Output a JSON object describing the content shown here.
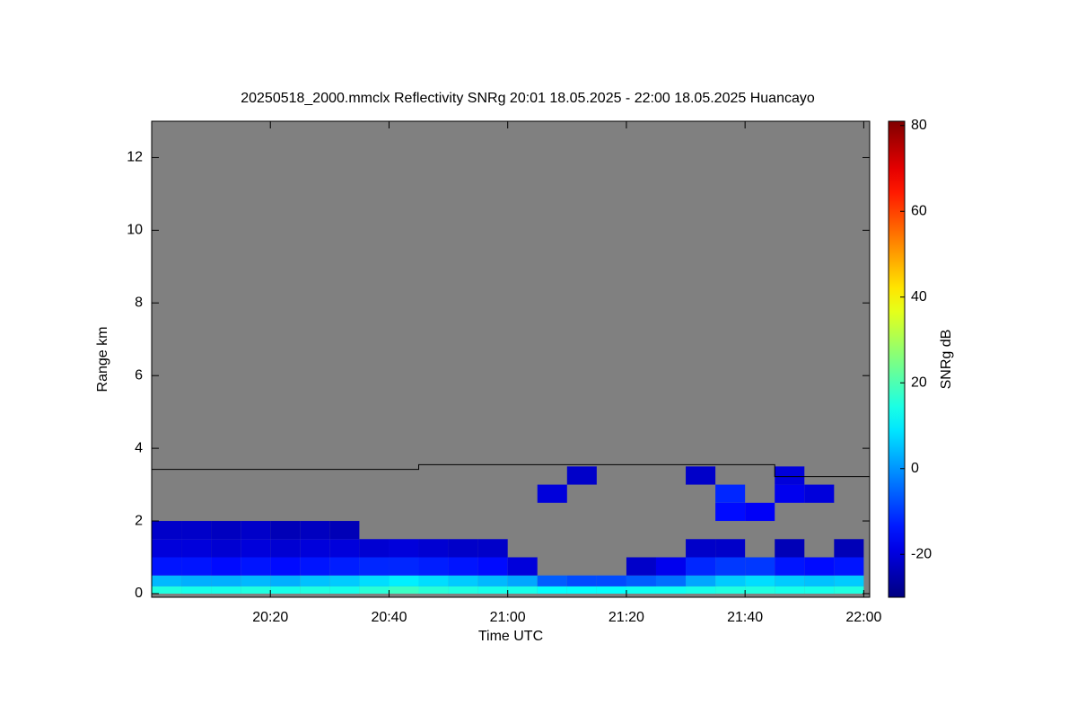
{
  "chart_data": {
    "type": "heatmap",
    "title": "20250518_2000.mmclx Reflectivity SNRg   20:01 18.05.2025 - 22:00 18.05.2025 Huancayo",
    "x_label": "Time UTC",
    "y_label": "Range km",
    "colorbar_label": "SNRg dB",
    "background": "#808080",
    "colormap": "jet",
    "xlim": [
      1200,
      1321
    ],
    "xticks": [
      {
        "value": 1220,
        "label": "20:20"
      },
      {
        "value": 1240,
        "label": "20:40"
      },
      {
        "value": 1260,
        "label": "21:00"
      },
      {
        "value": 1280,
        "label": "21:20"
      },
      {
        "value": 1300,
        "label": "21:40"
      },
      {
        "value": 1320,
        "label": "22:00"
      }
    ],
    "ylim": [
      -0.1,
      13
    ],
    "yticks": [
      0,
      2,
      4,
      6,
      8,
      10,
      12
    ],
    "clim": [
      -30,
      81
    ],
    "cticks": [
      -20,
      0,
      20,
      40,
      60,
      80
    ],
    "x_bins": [
      1200,
      1205,
      1210,
      1215,
      1220,
      1225,
      1230,
      1235,
      1240,
      1245,
      1250,
      1255,
      1260,
      1265,
      1270,
      1275,
      1280,
      1285,
      1290,
      1295,
      1300,
      1305,
      1310,
      1315,
      1320
    ],
    "y_bins": [
      0,
      0.2,
      0.5,
      1.0,
      1.5,
      2.0,
      2.5,
      3.0,
      3.5
    ],
    "values": [
      [
        15,
        14,
        14,
        15,
        14,
        15,
        14,
        16,
        18,
        16,
        15,
        14,
        14,
        12,
        12,
        12,
        13,
        13,
        14,
        15,
        15,
        14,
        14,
        15
      ],
      [
        4,
        3,
        3,
        4,
        3,
        5,
        6,
        8,
        10,
        8,
        6,
        4,
        2,
        -6,
        -8,
        -8,
        -6,
        -4,
        2,
        6,
        8,
        6,
        5,
        6
      ],
      [
        -14,
        -14,
        -15,
        -14,
        -15,
        -14,
        -13,
        -12,
        -12,
        -13,
        -14,
        -15,
        -20,
        null,
        null,
        null,
        -22,
        -18,
        -12,
        -10,
        -10,
        -14,
        -15,
        -14
      ],
      [
        -20,
        -20,
        -21,
        -20,
        -21,
        -20,
        -20,
        -21,
        -20,
        -21,
        -22,
        -22,
        null,
        null,
        null,
        null,
        null,
        null,
        -22,
        -22,
        null,
        -24,
        null,
        -24
      ],
      [
        -22,
        -22,
        -23,
        -22,
        -24,
        -23,
        -24,
        null,
        null,
        null,
        null,
        null,
        null,
        null,
        null,
        null,
        null,
        null,
        null,
        null,
        null,
        null,
        null,
        null
      ],
      [
        null,
        null,
        null,
        null,
        null,
        null,
        null,
        null,
        null,
        null,
        null,
        null,
        null,
        null,
        null,
        null,
        null,
        null,
        null,
        -15,
        -17,
        null,
        null,
        null
      ],
      [
        null,
        null,
        null,
        null,
        null,
        null,
        null,
        null,
        null,
        null,
        null,
        null,
        null,
        -20,
        null,
        null,
        null,
        null,
        null,
        -12,
        null,
        -18,
        -20,
        null
      ],
      [
        null,
        null,
        null,
        null,
        null,
        null,
        null,
        null,
        null,
        null,
        null,
        null,
        null,
        null,
        -22,
        null,
        null,
        null,
        -22,
        null,
        null,
        -20,
        null,
        null
      ]
    ],
    "line": {
      "x": [
        1200,
        1245,
        1245,
        1305,
        1305,
        1321
      ],
      "values": [
        3.42,
        3.42,
        3.55,
        3.55,
        3.22,
        3.22
      ],
      "color": "#000000"
    }
  }
}
